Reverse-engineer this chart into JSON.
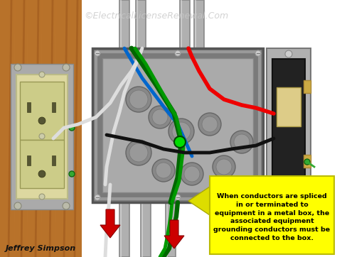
{
  "bg_color": "#ffffff",
  "title_text": "©ElectricalLicenseRenewal.Com",
  "title_color": "#c8c8c8",
  "title_fontsize": 9,
  "author_text": "Jeffrey Simpson",
  "author_fontsize": 8,
  "author_color": "#111111",
  "callout_text": "When conductors are spliced\nin or terminated to\nequipment in a metal box, the\nassociated equipment\ngrounding conductors must be\nconnected to the box.",
  "callout_bg": "#ffff00",
  "callout_border": "#cccc00",
  "callout_fontsize": 6.8,
  "callout_text_color": "#000000",
  "arrow_color": "#dddd00",
  "wood_color": "#b8722a",
  "wood_mid": "#c07830",
  "wood_dark": "#8b4513",
  "box_outer_color": "#888888",
  "box_inner_color": "#9a9a9a",
  "box_face_color": "#aaaaaa",
  "conduit_color": "#b0b0b0",
  "conduit_dark": "#888888",
  "outlet_body": "#ddd8a0",
  "outlet_face": "#ccc888",
  "outlet_dark": "#888855",
  "switch_plate": "#b0b0b0",
  "switch_body": "#222222",
  "switch_toggle": "#ddcc88",
  "wire_red": "#ee0000",
  "wire_black": "#111111",
  "wire_white": "#dddddd",
  "wire_green": "#006600",
  "wire_green2": "#009900",
  "wire_blue": "#0066cc",
  "indicator_green": "#00dd00",
  "arrow_red": "#cc0000",
  "brass_color": "#ccaa44"
}
